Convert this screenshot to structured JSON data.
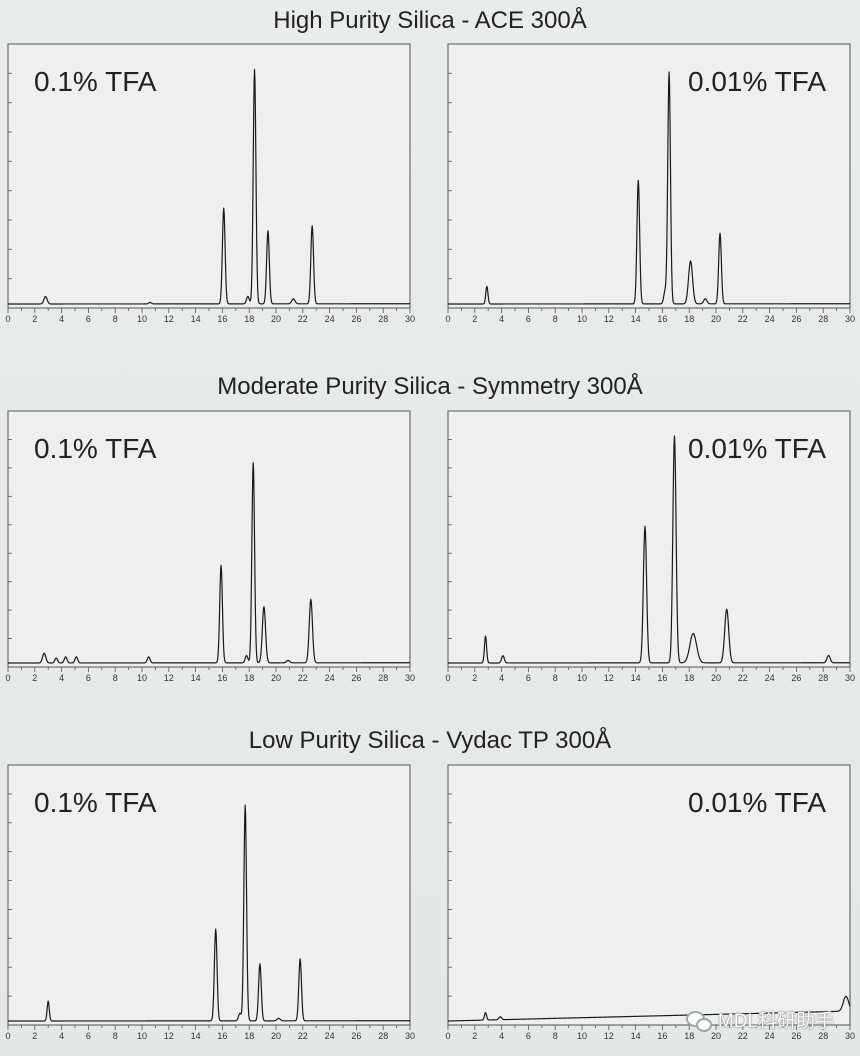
{
  "sections": [
    {
      "title": "High Purity Silica - ACE 300Å"
    },
    {
      "title": "Moderate Purity Silica - Symmetry 300Å"
    },
    {
      "title": "Low Purity Silica - Vydac TP 300Å"
    }
  ],
  "watermark": {
    "text": "MDL科研助手",
    "icon": "wechat-icon"
  },
  "chart_data": [
    {
      "type": "line",
      "section": 0,
      "condition": "0.1% TFA",
      "xlim": [
        0,
        30
      ],
      "x_ticks": [
        "0",
        "2",
        "4",
        "6",
        "8",
        "10",
        "12",
        "14",
        "16",
        "18",
        "20",
        "22",
        "24",
        "26",
        "28",
        "30"
      ],
      "baseline_drift": 0.001,
      "peaks": [
        {
          "x": 2.8,
          "height": 0.03,
          "width": 0.12
        },
        {
          "x": 10.6,
          "height": 0.006,
          "width": 0.1
        },
        {
          "x": 16.1,
          "height": 0.38,
          "width": 0.1
        },
        {
          "x": 17.9,
          "height": 0.03,
          "width": 0.1
        },
        {
          "x": 18.4,
          "height": 0.93,
          "width": 0.1
        },
        {
          "x": 19.4,
          "height": 0.29,
          "width": 0.1
        },
        {
          "x": 21.3,
          "height": 0.02,
          "width": 0.12
        },
        {
          "x": 22.7,
          "height": 0.31,
          "width": 0.1
        }
      ]
    },
    {
      "type": "line",
      "section": 0,
      "condition": "0.01% TFA",
      "xlim": [
        0,
        30
      ],
      "x_ticks": [
        "0",
        "2",
        "4",
        "6",
        "8",
        "10",
        "12",
        "14",
        "16",
        "18",
        "20",
        "22",
        "24",
        "26",
        "28",
        "30"
      ],
      "baseline_drift": 0.001,
      "peaks": [
        {
          "x": 2.9,
          "height": 0.07,
          "width": 0.08
        },
        {
          "x": 14.2,
          "height": 0.49,
          "width": 0.1
        },
        {
          "x": 16.2,
          "height": 0.05,
          "width": 0.1
        },
        {
          "x": 16.5,
          "height": 0.92,
          "width": 0.1
        },
        {
          "x": 18.1,
          "height": 0.17,
          "width": 0.15
        },
        {
          "x": 19.2,
          "height": 0.02,
          "width": 0.12
        },
        {
          "x": 20.3,
          "height": 0.28,
          "width": 0.1
        }
      ]
    },
    {
      "type": "line",
      "section": 1,
      "condition": "0.1% TFA",
      "xlim": [
        0,
        30
      ],
      "x_ticks": [
        "0",
        "2",
        "4",
        "6",
        "8",
        "10",
        "12",
        "14",
        "16",
        "18",
        "20",
        "22",
        "24",
        "26",
        "28",
        "30"
      ],
      "baseline_drift": 0.001,
      "peaks": [
        {
          "x": 2.7,
          "height": 0.04,
          "width": 0.12
        },
        {
          "x": 3.6,
          "height": 0.02,
          "width": 0.1
        },
        {
          "x": 4.3,
          "height": 0.025,
          "width": 0.1
        },
        {
          "x": 5.1,
          "height": 0.025,
          "width": 0.1
        },
        {
          "x": 10.5,
          "height": 0.025,
          "width": 0.1
        },
        {
          "x": 15.9,
          "height": 0.4,
          "width": 0.1
        },
        {
          "x": 17.8,
          "height": 0.03,
          "width": 0.1
        },
        {
          "x": 18.3,
          "height": 0.82,
          "width": 0.1
        },
        {
          "x": 19.1,
          "height": 0.23,
          "width": 0.12
        },
        {
          "x": 20.9,
          "height": 0.01,
          "width": 0.12
        },
        {
          "x": 22.6,
          "height": 0.26,
          "width": 0.12
        }
      ]
    },
    {
      "type": "line",
      "section": 1,
      "condition": "0.01% TFA",
      "xlim": [
        0,
        30
      ],
      "x_ticks": [
        "0",
        "2",
        "4",
        "6",
        "8",
        "10",
        "12",
        "14",
        "16",
        "18",
        "20",
        "22",
        "24",
        "26",
        "28",
        "30"
      ],
      "baseline_drift": 0.001,
      "peaks": [
        {
          "x": 2.8,
          "height": 0.11,
          "width": 0.08
        },
        {
          "x": 4.1,
          "height": 0.03,
          "width": 0.1
        },
        {
          "x": 14.7,
          "height": 0.56,
          "width": 0.12
        },
        {
          "x": 16.9,
          "height": 0.93,
          "width": 0.12
        },
        {
          "x": 18.3,
          "height": 0.12,
          "width": 0.25
        },
        {
          "x": 20.8,
          "height": 0.22,
          "width": 0.15
        },
        {
          "x": 28.4,
          "height": 0.03,
          "width": 0.12
        }
      ]
    },
    {
      "type": "line",
      "section": 2,
      "condition": "0.1% TFA",
      "xlim": [
        0,
        30
      ],
      "x_ticks": [
        "0",
        "2",
        "4",
        "6",
        "8",
        "10",
        "12",
        "14",
        "16",
        "18",
        "20",
        "22",
        "24",
        "26",
        "28",
        "30"
      ],
      "baseline_drift": 0.001,
      "peaks": [
        {
          "x": 3.0,
          "height": 0.08,
          "width": 0.08
        },
        {
          "x": 15.5,
          "height": 0.37,
          "width": 0.1
        },
        {
          "x": 17.3,
          "height": 0.03,
          "width": 0.1
        },
        {
          "x": 17.7,
          "height": 0.87,
          "width": 0.1
        },
        {
          "x": 18.8,
          "height": 0.23,
          "width": 0.1
        },
        {
          "x": 20.2,
          "height": 0.01,
          "width": 0.12
        },
        {
          "x": 21.8,
          "height": 0.25,
          "width": 0.1
        }
      ]
    },
    {
      "type": "line",
      "section": 2,
      "condition": "0.01% TFA",
      "xlim": [
        0,
        30
      ],
      "x_ticks": [
        "0",
        "2",
        "4",
        "6",
        "8",
        "10",
        "12",
        "14",
        "16",
        "18",
        "20",
        "22",
        "24",
        "26",
        "28",
        "30"
      ],
      "baseline_drift": 0.04,
      "peaks": [
        {
          "x": 2.8,
          "height": 0.03,
          "width": 0.08
        },
        {
          "x": 3.9,
          "height": 0.012,
          "width": 0.1
        },
        {
          "x": 29.7,
          "height": 0.06,
          "width": 0.2
        }
      ]
    }
  ]
}
